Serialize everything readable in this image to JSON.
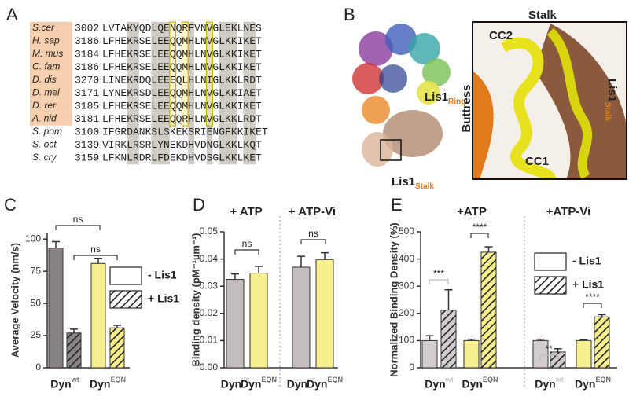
{
  "panel_labels": [
    "A",
    "B",
    "C",
    "D",
    "E"
  ],
  "alignment": {
    "rows": [
      {
        "species": "S.cer",
        "start": 3002,
        "sequence": "LVTAKYQDLQENQRFVNVGLEKLNES"
      },
      {
        "species": "H. sap",
        "start": 3186,
        "sequence": "LFHEKRSELEEQQMHLNVGLKKIKET"
      },
      {
        "species": "M. mus",
        "start": 3184,
        "sequence": "LFHEKRSELEEQQMHLNVGLKKIKET"
      },
      {
        "species": "C. fam",
        "start": 3186,
        "sequence": "LFHEKRSELEEQQMHLNVGLKKIKET"
      },
      {
        "species": "D. dis",
        "start": 3270,
        "sequence": "LINEKRDQLEEEQLHLNIGLKKLRDT"
      },
      {
        "species": "D. mel",
        "start": 3171,
        "sequence": "LYNEKRSDLEEQQMHLNVGLKKIAET"
      },
      {
        "species": "D. rer",
        "start": 3185,
        "sequence": "LFHEKRSELEEQQMHLNVGLKKIKET"
      },
      {
        "species": "A. nid",
        "start": 3181,
        "sequence": "LFHEKRSELEEQQRHLNVGLKKLRDT"
      },
      {
        "species": "S. pom",
        "start": 3100,
        "sequence": "IFGRDANKSLSKEKSRIENGFKKIKET"
      },
      {
        "species": "S. oct",
        "start": 3139,
        "sequence": "VIRKLRSRLYNEKDHVDNGLKKLKQT"
      },
      {
        "species": "S. cry",
        "start": 3159,
        "sequence": "LFKNLRDRLFDEKDHVDSGLKKLKET"
      }
    ]
  },
  "structure": {
    "lis1_ring": {
      "text": "Lis1",
      "subscript": "Ring"
    },
    "lis1_stalk_overview": {
      "text": "Lis1",
      "subscript": "Stalk"
    },
    "stalk": "Stalk",
    "cc2": "CC2",
    "cc1": "CC1",
    "buttress": "Buttress",
    "lis1_stalk_zoom": {
      "text": "Lis1",
      "subscript": "Stalk"
    }
  },
  "chart_data": [
    {
      "type": "bar",
      "y_label": "Average Velocity (nm/s)",
      "categories": [
        "Dyn",
        "Dyn"
      ],
      "superscripts": [
        "wt",
        "EQN"
      ],
      "category_colors": [
        "#8a8383",
        "#f7ef8e"
      ],
      "label_colors": [
        "#777777",
        "#777777"
      ],
      "series": [
        {
          "name": "- Lis1",
          "values": [
            93,
            81
          ],
          "errors": [
            5,
            4
          ]
        },
        {
          "name": "+ Lis1",
          "hatch": true,
          "values": [
            27,
            31
          ],
          "errors": [
            3,
            2
          ]
        }
      ],
      "ylim": [
        0,
        105
      ],
      "yticks": [
        0,
        25,
        50,
        75,
        100
      ],
      "annotations": [
        "ns",
        "ns"
      ],
      "annotation_colors": [
        "#333333",
        "#333333"
      ]
    },
    {
      "type": "bar",
      "y_label": "Binding density (pM⁻¹µm⁻¹)",
      "groups": [
        "+ ATP",
        "+ ATP-Vi"
      ],
      "categories": [
        "Dyn",
        "Dyn",
        "Dyn",
        "Dyn"
      ],
      "superscripts": [
        "wt",
        "EQN",
        "wt",
        "EQN"
      ],
      "category_colors": [
        "#c4bdbd",
        "#f7ef8e",
        "#c4bdbd",
        "#f7ef8e"
      ],
      "label_colors": [
        "#c8c8c8",
        "#666666",
        "#c8c8c8",
        "#666666"
      ],
      "series": [
        {
          "values": [
            0.0325,
            0.0348,
            0.037,
            0.0398
          ],
          "errors": [
            0.002,
            0.0025,
            0.004,
            0.0025
          ]
        }
      ],
      "ylim": [
        0,
        0.05
      ],
      "yticks": [
        {
          "value": 0,
          "label": "0.00"
        },
        0.01,
        0.02,
        0.03,
        0.04,
        0.05
      ],
      "annotations": [
        "ns",
        "ns"
      ],
      "annotation_colors": [
        "#333333",
        "#333333"
      ]
    },
    {
      "type": "bar",
      "y_label": "Normalized Binding Density (%)",
      "groups": [
        "+ATP",
        "+ATP-Vi"
      ],
      "categories": [
        "Dyn",
        "Dyn",
        "Dyn",
        "Dyn"
      ],
      "superscripts": [
        "wt",
        "EQN",
        "wt",
        "EQN"
      ],
      "category_colors": [
        "#d2cccc",
        "#f7ef8e",
        "#d2cccc",
        "#f7ef8e"
      ],
      "label_colors": [
        "#c8c8c8",
        "#666666",
        "#c8c8c8",
        "#666666"
      ],
      "series": [
        {
          "name": "- Lis1",
          "values": [
            100,
            100,
            100,
            100
          ],
          "errors": [
            18,
            5,
            5,
            2
          ]
        },
        {
          "name": "+ Lis1",
          "hatch": true,
          "values": [
            212,
            425,
            58,
            187
          ],
          "errors": [
            75,
            20,
            12,
            8
          ]
        }
      ],
      "ylim": [
        0,
        500
      ],
      "yticks": [
        0,
        100,
        200,
        300,
        400,
        500
      ],
      "annotations": [
        "***",
        "****",
        "**",
        "****"
      ],
      "annotation_colors": [
        "#bbbbbb",
        "#333333",
        "#bbbbbb",
        "#333333"
      ]
    }
  ]
}
